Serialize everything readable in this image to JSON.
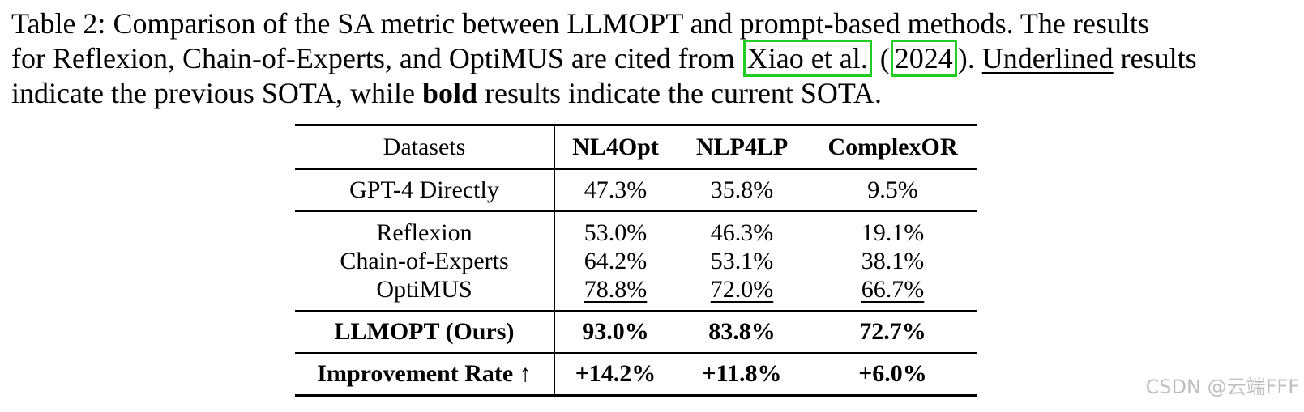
{
  "caption": {
    "line1": "Table 2: Comparison of the SA metric between LLMOPT and prompt-based methods. The results",
    "line2_pre": "for Reflexion, Chain-of-Experts, and OptiMUS are cited from ",
    "line2_cite_author": "Xiao et al.",
    "line2_paren_open": " (",
    "line2_cite_year": "2024",
    "line2_paren_close": "). ",
    "line2_underlined": "Underlined",
    "line2_post": " results",
    "line3_pre": "indicate the previous SOTA, while ",
    "line3_bold": "bold",
    "line3_post": " results indicate the current SOTA."
  },
  "table": {
    "headers": [
      "Datasets",
      "NL4Opt",
      "NLP4LP",
      "ComplexOR"
    ],
    "rows": [
      {
        "method": "GPT-4 Directly",
        "values": [
          "47.3%",
          "35.8%",
          "9.5%"
        ]
      },
      {
        "method": "Reflexion",
        "values": [
          "53.0%",
          "46.3%",
          "19.1%"
        ]
      },
      {
        "method": "Chain-of-Experts",
        "values": [
          "64.2%",
          "53.1%",
          "38.1%"
        ]
      },
      {
        "method": "OptiMUS",
        "values": [
          "78.8%",
          "72.0%",
          "66.7%"
        ]
      },
      {
        "method": "LLMOPT (Ours)",
        "values": [
          "93.0%",
          "83.8%",
          "72.7%"
        ]
      },
      {
        "method": "Improvement Rate ↑",
        "values": [
          "+14.2%",
          "+11.8%",
          "+6.0%"
        ]
      }
    ]
  },
  "watermark": "CSDN @云端FFF"
}
